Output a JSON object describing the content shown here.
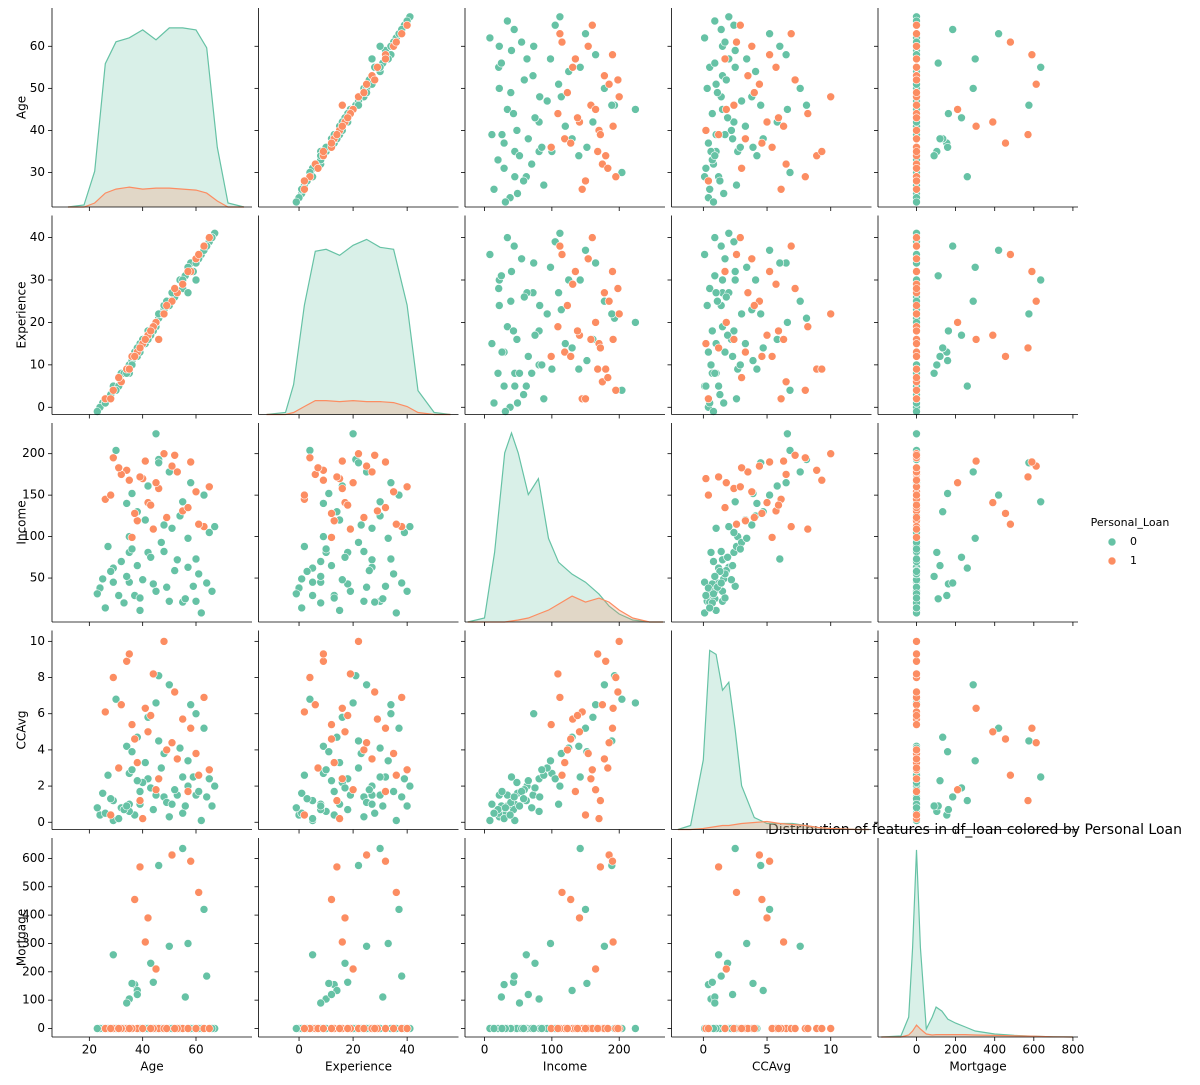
{
  "chart_data": {
    "type": "pairplot",
    "title": "Distribution of features in df_loan colored by Personal Loan",
    "legend_title": "Personal_Loan",
    "legend_position": "right",
    "variables": [
      "Age",
      "Experience",
      "Income",
      "CCAvg",
      "Mortgage"
    ],
    "xlims": [
      [
        6,
        81
      ],
      [
        -15,
        59
      ],
      [
        -29,
        268
      ],
      [
        -2.5,
        13.2
      ],
      [
        -197,
        826
      ]
    ],
    "ylims": [
      [
        21.8,
        69.1
      ],
      [
        -1.7,
        45.2
      ],
      [
        -3,
        237
      ],
      [
        -0.4,
        10.6
      ],
      [
        -30,
        672
      ]
    ],
    "xticks": [
      [
        20,
        40,
        60
      ],
      [
        0,
        20,
        40
      ],
      [
        0,
        100,
        200
      ],
      [
        0,
        5,
        10
      ],
      [
        0,
        200,
        400,
        600,
        800
      ]
    ],
    "yticks": [
      [
        30,
        40,
        50,
        60
      ],
      [
        0,
        10,
        20,
        30,
        40
      ],
      [
        50,
        100,
        150,
        200
      ],
      [
        0,
        2,
        4,
        6,
        8,
        10
      ],
      [
        0,
        100,
        200,
        300,
        400,
        500,
        600
      ]
    ],
    "diag_ylim": [
      0,
      1
    ],
    "kde_x": [
      [
        12,
        18,
        22,
        26,
        30,
        35,
        40,
        45,
        50,
        55,
        60,
        64,
        68,
        72,
        78
      ],
      [
        -12,
        -5,
        -2,
        2,
        6,
        10,
        15,
        20,
        25,
        30,
        35,
        40,
        44,
        50,
        56
      ],
      [
        -25,
        0,
        15,
        30,
        40,
        50,
        65,
        80,
        95,
        110,
        130,
        150,
        170,
        185,
        200,
        220,
        245,
        265
      ],
      [
        -2,
        -1,
        0,
        0.5,
        1,
        1.5,
        2,
        2.5,
        3,
        4,
        5,
        6,
        7,
        8,
        9,
        10,
        12,
        13
      ],
      [
        -180,
        -80,
        -40,
        -20,
        0,
        20,
        50,
        80,
        100,
        130,
        160,
        200,
        250,
        300,
        400,
        500,
        600,
        700,
        800
      ]
    ],
    "series": [
      {
        "name": "0",
        "color": "#66c2a5",
        "values": [
          [
            25,
            45,
            39,
            35,
            35,
            37,
            53,
            50,
            35,
            34,
            65,
            29,
            48,
            59,
            67,
            60,
            38,
            42,
            46,
            55,
            56,
            57,
            29,
            44,
            36,
            31,
            48,
            24,
            58,
            62,
            32,
            41,
            52,
            27,
            63,
            40,
            33,
            50,
            47,
            61,
            26,
            43,
            38,
            54,
            66,
            30,
            49,
            45,
            57,
            28,
            36,
            64,
            42,
            34,
            51,
            60,
            23,
            46,
            39,
            55
          ],
          [
            1,
            19,
            15,
            9,
            8,
            13,
            27,
            24,
            10,
            9,
            39,
            5,
            23,
            32,
            41,
            30,
            14,
            18,
            21,
            28,
            31,
            27,
            5,
            18,
            11,
            5,
            24,
            0,
            34,
            36,
            8,
            15,
            26,
            2,
            37,
            16,
            8,
            25,
            22,
            35,
            1,
            17,
            12,
            30,
            40,
            4,
            25,
            20,
            33,
            3,
            10,
            38,
            16,
            8,
            27,
            34,
            -1,
            22,
            13,
            30
          ],
          [
            49,
            34,
            11,
            100,
            45,
            29,
            72,
            22,
            81,
            140,
            105,
            45,
            114,
            40,
            112,
            22,
            130,
            81,
            193,
            21,
            25,
            63,
            62,
            43,
            152,
            29,
            82,
            38,
            165,
            8,
            70,
            120,
            59,
            88,
            150,
            48,
            20,
            178,
            93,
            55,
            14,
            75,
            65,
            125,
            34,
            204,
            39,
            224,
            98,
            58,
            85,
            44,
            161,
            52,
            110,
            73,
            31,
            189,
            26,
            142
          ],
          [
            1.6,
            1.5,
            1.0,
            2.7,
            1.0,
            0.4,
            1.5,
            0.3,
            0.6,
            4.2,
            2.4,
            0.1,
            3.8,
            2.5,
            2.0,
            1.5,
            4.7,
            2.4,
            8.1,
            0.5,
            0.9,
            2.0,
            1.2,
            0.7,
            3.9,
            0.2,
            1.4,
            0.4,
            6.5,
            0.1,
            0.8,
            3.3,
            1.8,
            2.6,
            5.2,
            2.2,
            0.7,
            7.6,
            3.0,
            1.7,
            0.5,
            1.9,
            2.3,
            4.1,
            0.9,
            6.8,
            1.1,
            6.6,
            3.4,
            1.3,
            2.9,
            1.4,
            5.8,
            0.9,
            1.0,
            6.0,
            0.8,
            4.5,
            1.7,
            2.5
          ],
          [
            0,
            0,
            0,
            0,
            0,
            155,
            0,
            0,
            104,
            0,
            0,
            0,
            0,
            0,
            0,
            0,
            134,
            0,
            0,
            0,
            111,
            0,
            260,
            163,
            159,
            0,
            0,
            0,
            0,
            0,
            0,
            0,
            0,
            0,
            420,
            0,
            0,
            290,
            0,
            0,
            0,
            230,
            120,
            0,
            0,
            0,
            0,
            0,
            300,
            0,
            0,
            185,
            0,
            90,
            0,
            0,
            0,
            575,
            0,
            635
          ]
        ],
        "kde": [
          [
            0,
            0.01,
            0.18,
            0.72,
            0.83,
            0.85,
            0.89,
            0.84,
            0.9,
            0.9,
            0.89,
            0.8,
            0.3,
            0.02,
            0
          ],
          [
            0,
            0.01,
            0.15,
            0.55,
            0.82,
            0.83,
            0.8,
            0.85,
            0.88,
            0.84,
            0.83,
            0.55,
            0.12,
            0.01,
            0
          ],
          [
            0,
            0.02,
            0.35,
            0.85,
            0.95,
            0.85,
            0.64,
            0.72,
            0.42,
            0.3,
            0.24,
            0.2,
            0.14,
            0.08,
            0.04,
            0.01,
            0,
            0
          ],
          [
            0,
            0.02,
            0.35,
            0.9,
            0.88,
            0.7,
            0.74,
            0.5,
            0.22,
            0.06,
            0.03,
            0.03,
            0.03,
            0.02,
            0.01,
            0.005,
            0,
            0
          ],
          [
            0,
            0.005,
            0.1,
            0.45,
            0.94,
            0.45,
            0.04,
            0.1,
            0.15,
            0.13,
            0.09,
            0.07,
            0.05,
            0.03,
            0.015,
            0.008,
            0.004,
            0.001,
            0
          ]
        ]
      },
      {
        "name": "1",
        "color": "#fc8d62",
        "values": [
          [
            34,
            46,
            38,
            51,
            60,
            32,
            42,
            29,
            55,
            63,
            40,
            48,
            36,
            58,
            45,
            26,
            53,
            37,
            65,
            44,
            31,
            57,
            41,
            49,
            35,
            61,
            28,
            52,
            43,
            39
          ],
          [
            9,
            16,
            13,
            25,
            35,
            6,
            17,
            4,
            29,
            38,
            15,
            22,
            12,
            32,
            20,
            2,
            27,
            12,
            40,
            19,
            7,
            32,
            16,
            24,
            9,
            36,
            2,
            28,
            18,
            14
          ],
          [
            180,
            158,
            119,
            185,
            154,
            175,
            141,
            195,
            131,
            112,
            170,
            200,
            99,
            190,
            165,
            145,
            178,
            128,
            160,
            109,
            183,
            135,
            191,
            123,
            168,
            115,
            150,
            198,
            138,
            172
          ],
          [
            8.9,
            2.4,
            3.3,
            4.4,
            3.8,
            6.5,
            5.0,
            8.0,
            5.7,
            6.9,
            0.2,
            10,
            5.4,
            5.2,
            1.8,
            6.1,
            3.5,
            4.6,
            2.9,
            8.2,
            3.0,
            1.7,
            6.3,
            4.0,
            9.3,
            2.6,
            0.4,
            7.2,
            5.9,
            1.2
          ],
          [
            0,
            0,
            0,
            612,
            0,
            0,
            390,
            0,
            0,
            0,
            0,
            0,
            0,
            590,
            210,
            0,
            0,
            455,
            0,
            0,
            0,
            0,
            305,
            0,
            0,
            480,
            0,
            0,
            0,
            570
          ]
        ],
        "kde": [
          [
            0,
            0,
            0.02,
            0.07,
            0.09,
            0.1,
            0.09,
            0.095,
            0.095,
            0.09,
            0.085,
            0.07,
            0.03,
            0,
            0
          ],
          [
            0,
            0,
            0.01,
            0.04,
            0.07,
            0.07,
            0.065,
            0.07,
            0.065,
            0.065,
            0.06,
            0.04,
            0.01,
            0,
            0
          ],
          [
            0,
            0,
            0,
            0,
            0.005,
            0.01,
            0.02,
            0.04,
            0.06,
            0.09,
            0.13,
            0.1,
            0.12,
            0.1,
            0.06,
            0.02,
            0,
            0
          ],
          [
            0,
            0,
            0.005,
            0.01,
            0.015,
            0.02,
            0.02,
            0.025,
            0.03,
            0.035,
            0.04,
            0.03,
            0.025,
            0.02,
            0.01,
            0.005,
            0,
            0
          ],
          [
            0,
            0,
            0.01,
            0.03,
            0.06,
            0.04,
            0.015,
            0.01,
            0.012,
            0.012,
            0.012,
            0.012,
            0.012,
            0.01,
            0.008,
            0.006,
            0.004,
            0.001,
            0
          ]
        ]
      }
    ]
  }
}
